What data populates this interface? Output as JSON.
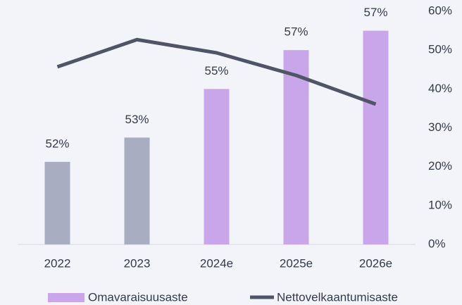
{
  "chart_data": {
    "type": "bar_line",
    "categories": [
      "2022",
      "2023",
      "2024e",
      "2025e",
      "2026e"
    ],
    "series": [
      {
        "name": "Omavaraisuusaste",
        "type": "bar",
        "color": "#c9a6e9",
        "colors": [
          "#a9adc2",
          "#a9adc2",
          "#c9a6e9",
          "#c9a6e9",
          "#c9a6e9"
        ],
        "values": [
          52,
          53,
          55,
          56.6,
          57.4
        ],
        "value_labels": [
          "52%",
          "53%",
          "55%",
          "57%",
          "57%"
        ]
      },
      {
        "name": "Nettovelkaantumisaste",
        "type": "line",
        "color": "#4f5566",
        "axis": "y2",
        "values": [
          45.7,
          52.7,
          49.3,
          43.5,
          36.1
        ]
      }
    ],
    "ylim": [
      48.6,
      58.2
    ],
    "y2lim": [
      0,
      60
    ],
    "y2ticks": [
      {
        "value": 0,
        "label": "0%"
      },
      {
        "value": 10,
        "label": "10%"
      },
      {
        "value": 20,
        "label": "20%"
      },
      {
        "value": 30,
        "label": "30%"
      },
      {
        "value": 40,
        "label": "40%"
      },
      {
        "value": 50,
        "label": "50%"
      },
      {
        "value": 60,
        "label": "60%"
      }
    ],
    "legend": "bottom"
  }
}
